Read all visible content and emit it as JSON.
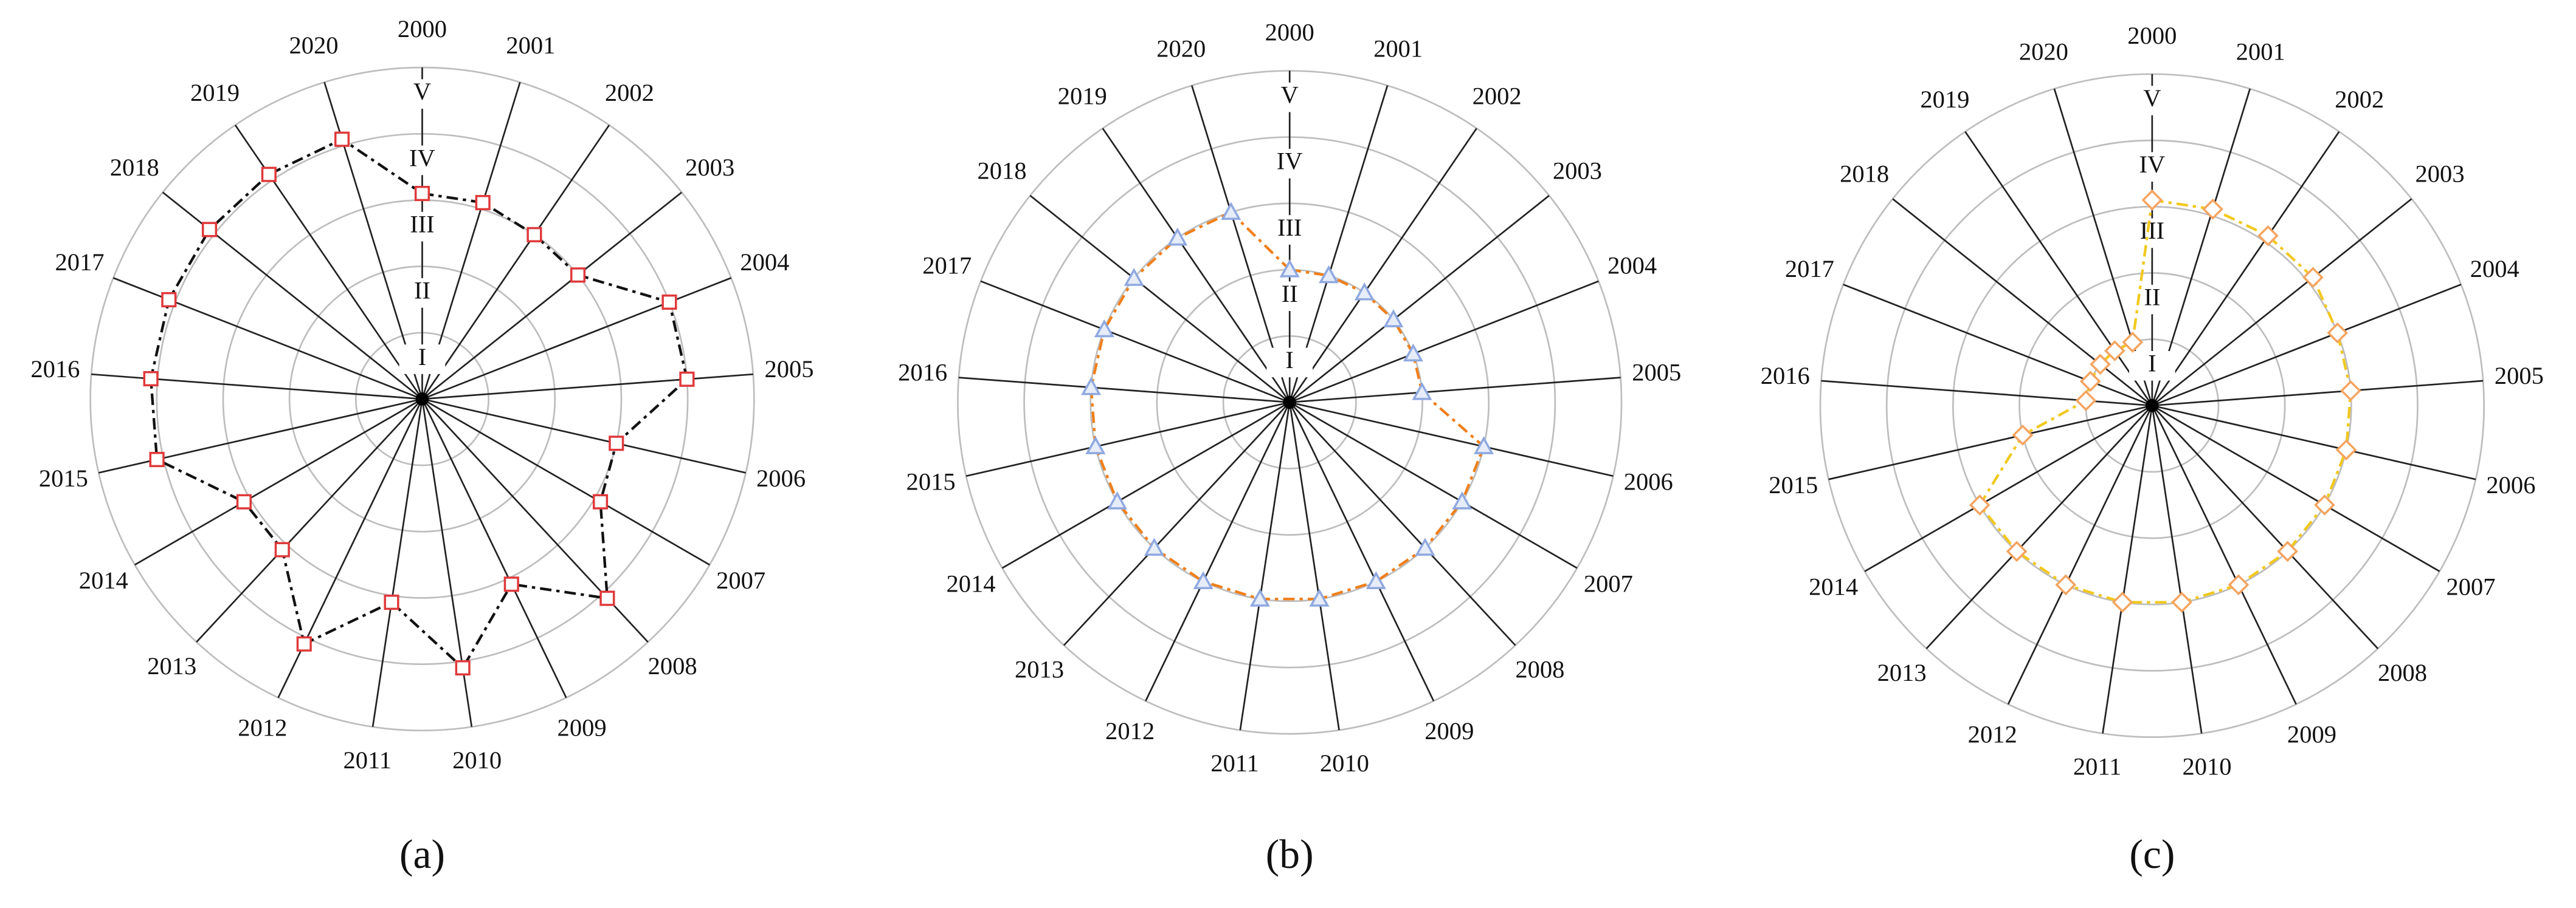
{
  "chart_data": [
    {
      "type": "radar",
      "caption": "(a)",
      "categories": [
        "2000",
        "2001",
        "2002",
        "2003",
        "2004",
        "2005",
        "2006",
        "2007",
        "2008",
        "2009",
        "2010",
        "2011",
        "2012",
        "2013",
        "2014",
        "2015",
        "2016",
        "2017",
        "2018",
        "2019",
        "2020"
      ],
      "values": [
        3.1,
        3.1,
        3.0,
        3.0,
        4.0,
        4.0,
        3.0,
        3.1,
        4.1,
        3.1,
        4.1,
        3.1,
        4.1,
        3.1,
        3.1,
        4.1,
        4.1,
        4.1,
        4.1,
        4.1,
        4.1
      ],
      "ylim": [
        0,
        5
      ],
      "yticks": [
        {
          "value": 1,
          "label": "I"
        },
        {
          "value": 2,
          "label": "II"
        },
        {
          "value": 3,
          "label": "III"
        },
        {
          "value": 4,
          "label": "IV"
        },
        {
          "value": 5,
          "label": "V"
        }
      ],
      "line_color": "#111111",
      "line_style": "dash-dot",
      "marker": "square",
      "marker_color": "#e0393b",
      "grid": true
    },
    {
      "type": "radar",
      "caption": "(b)",
      "categories": [
        "2000",
        "2001",
        "2002",
        "2003",
        "2004",
        "2005",
        "2006",
        "2007",
        "2008",
        "2009",
        "2010",
        "2011",
        "2012",
        "2013",
        "2014",
        "2015",
        "2016",
        "2017",
        "2018",
        "2019",
        "2020"
      ],
      "values": [
        2.0,
        2.0,
        2.0,
        2.0,
        2.0,
        2.0,
        3.0,
        3.0,
        3.0,
        3.0,
        3.0,
        3.0,
        3.0,
        3.0,
        3.0,
        3.0,
        3.0,
        3.0,
        3.0,
        3.0,
        3.0
      ],
      "ylim": [
        0,
        5
      ],
      "yticks": [
        {
          "value": 1,
          "label": "I"
        },
        {
          "value": 2,
          "label": "II"
        },
        {
          "value": 3,
          "label": "III"
        },
        {
          "value": 4,
          "label": "IV"
        },
        {
          "value": 5,
          "label": "V"
        }
      ],
      "line_color": "#f07f1a",
      "line_style": "dash-dot",
      "marker": "triangle",
      "marker_color": "#8fa8e0",
      "grid": true
    },
    {
      "type": "radar",
      "caption": "(c)",
      "categories": [
        "2000",
        "2001",
        "2002",
        "2003",
        "2004",
        "2005",
        "2006",
        "2007",
        "2008",
        "2009",
        "2010",
        "2011",
        "2012",
        "2013",
        "2014",
        "2015",
        "2016",
        "2017",
        "2018",
        "2019",
        "2020"
      ],
      "values": [
        3.1,
        3.1,
        3.1,
        3.1,
        3.0,
        3.0,
        3.0,
        3.0,
        3.0,
        3.0,
        3.0,
        3.0,
        3.0,
        3.0,
        3.0,
        2.0,
        1.0,
        1.0,
        1.0,
        1.0,
        1.0
      ],
      "ylim": [
        0,
        5
      ],
      "yticks": [
        {
          "value": 1,
          "label": "I"
        },
        {
          "value": 2,
          "label": "II"
        },
        {
          "value": 3,
          "label": "III"
        },
        {
          "value": 4,
          "label": "IV"
        },
        {
          "value": 5,
          "label": "V"
        }
      ],
      "line_color": "#f2c81e",
      "line_style": "dash-dot",
      "marker": "diamond",
      "marker_color": "#f4a460",
      "grid": true
    }
  ]
}
